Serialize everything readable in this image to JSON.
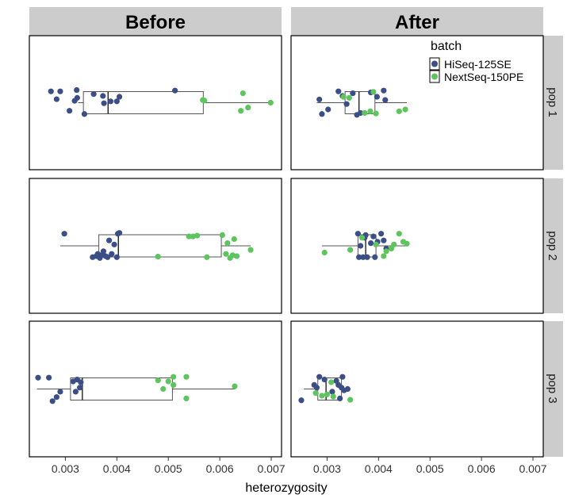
{
  "chart_data": {
    "type": "scatter",
    "xlabel": "heterozygosity",
    "xlim": [
      0.0023,
      0.0072
    ],
    "xticks": [
      "0.003",
      "0.004",
      "0.005",
      "0.006",
      "0.007"
    ],
    "xtick_values": [
      0.003,
      0.004,
      0.005,
      0.006,
      0.007
    ],
    "facet_columns": [
      "Before",
      "After"
    ],
    "facet_rows": [
      "pop 1",
      "pop 2",
      "pop 3"
    ],
    "legend": {
      "title": "batch",
      "entries": [
        {
          "label": "HiSeq-125SE",
          "color": "#3b4f86"
        },
        {
          "label": "NextSeq-150PE",
          "color": "#5ec45e"
        }
      ]
    },
    "colors": {
      "strip": "#cccccc",
      "box": "#555555",
      "panel_border": "#000000"
    },
    "panels": [
      {
        "column": "Before",
        "row": "pop 1",
        "box": {
          "whisker_low": 0.00325,
          "q1": 0.00335,
          "median": 0.00383,
          "q3": 0.00568,
          "whisker_high": 0.007
        },
        "points": [
          {
            "x": 0.00272,
            "y": 0.42,
            "batch": "HiSeq-125SE"
          },
          {
            "x": 0.0029,
            "y": 0.42,
            "batch": "HiSeq-125SE"
          },
          {
            "x": 0.00283,
            "y": 0.13,
            "batch": "HiSeq-125SE"
          },
          {
            "x": 0.00318,
            "y": 0.07,
            "batch": "HiSeq-125SE"
          },
          {
            "x": 0.00308,
            "y": -0.3,
            "batch": "HiSeq-125SE"
          },
          {
            "x": 0.00337,
            "y": -0.42,
            "batch": "HiSeq-125SE"
          },
          {
            "x": 0.00323,
            "y": 0.18,
            "batch": "HiSeq-125SE"
          },
          {
            "x": 0.00355,
            "y": 0.32,
            "batch": "HiSeq-125SE"
          },
          {
            "x": 0.00373,
            "y": 0.25,
            "batch": "HiSeq-125SE"
          },
          {
            "x": 0.00388,
            "y": 0.05,
            "batch": "HiSeq-125SE"
          },
          {
            "x": 0.004,
            "y": 0.05,
            "batch": "HiSeq-125SE"
          },
          {
            "x": 0.00375,
            "y": -0.02,
            "batch": "HiSeq-125SE"
          },
          {
            "x": 0.00405,
            "y": 0.22,
            "batch": "HiSeq-125SE"
          },
          {
            "x": 0.00513,
            "y": 0.45,
            "batch": "HiSeq-125SE"
          },
          {
            "x": 0.00322,
            "y": 0.47,
            "batch": "HiSeq-125SE"
          },
          {
            "x": 0.00567,
            "y": 0.1,
            "batch": "NextSeq-150PE"
          },
          {
            "x": 0.0057,
            "y": 0.08,
            "batch": "NextSeq-150PE"
          },
          {
            "x": 0.00645,
            "y": 0.35,
            "batch": "NextSeq-150PE"
          },
          {
            "x": 0.00641,
            "y": -0.3,
            "batch": "NextSeq-150PE"
          },
          {
            "x": 0.00655,
            "y": -0.18,
            "batch": "NextSeq-150PE"
          },
          {
            "x": 0.00699,
            "y": 0.0,
            "batch": "NextSeq-150PE"
          }
        ]
      },
      {
        "column": "After",
        "row": "pop 1",
        "box": {
          "whisker_low": 0.0028,
          "q1": 0.00335,
          "median": 0.00362,
          "q3": 0.00393,
          "whisker_high": 0.00455
        },
        "points": [
          {
            "x": 0.00285,
            "y": 0.12,
            "batch": "HiSeq-125SE"
          },
          {
            "x": 0.0029,
            "y": -0.42,
            "batch": "HiSeq-125SE"
          },
          {
            "x": 0.00302,
            "y": -0.25,
            "batch": "HiSeq-125SE"
          },
          {
            "x": 0.00322,
            "y": 0.42,
            "batch": "HiSeq-125SE"
          },
          {
            "x": 0.0033,
            "y": 0.25,
            "batch": "HiSeq-125SE"
          },
          {
            "x": 0.00338,
            "y": -0.05,
            "batch": "HiSeq-125SE"
          },
          {
            "x": 0.0035,
            "y": 0.35,
            "batch": "HiSeq-125SE"
          },
          {
            "x": 0.00358,
            "y": -0.45,
            "batch": "HiSeq-125SE"
          },
          {
            "x": 0.00365,
            "y": -0.38,
            "batch": "HiSeq-125SE"
          },
          {
            "x": 0.00385,
            "y": 0.38,
            "batch": "HiSeq-125SE"
          },
          {
            "x": 0.00397,
            "y": 0.22,
            "batch": "HiSeq-125SE"
          },
          {
            "x": 0.0041,
            "y": 0.45,
            "batch": "HiSeq-125SE"
          },
          {
            "x": 0.00413,
            "y": 0.1,
            "batch": "HiSeq-125SE"
          },
          {
            "x": 0.00332,
            "y": 0.22,
            "batch": "NextSeq-150PE"
          },
          {
            "x": 0.00343,
            "y": 0.18,
            "batch": "NextSeq-150PE"
          },
          {
            "x": 0.00373,
            "y": -0.38,
            "batch": "NextSeq-150PE"
          },
          {
            "x": 0.00384,
            "y": -0.32,
            "batch": "NextSeq-150PE"
          },
          {
            "x": 0.0039,
            "y": 0.4,
            "batch": "NextSeq-150PE"
          },
          {
            "x": 0.00395,
            "y": -0.4,
            "batch": "NextSeq-150PE"
          },
          {
            "x": 0.0044,
            "y": -0.32,
            "batch": "NextSeq-150PE"
          },
          {
            "x": 0.00452,
            "y": -0.25,
            "batch": "NextSeq-150PE"
          }
        ]
      },
      {
        "column": "Before",
        "row": "pop 2",
        "box": {
          "whisker_low": 0.0029,
          "q1": 0.00365,
          "median": 0.00403,
          "q3": 0.00603,
          "whisker_high": 0.0066
        },
        "points": [
          {
            "x": 0.00298,
            "y": 0.45,
            "batch": "HiSeq-125SE"
          },
          {
            "x": 0.00353,
            "y": -0.42,
            "batch": "HiSeq-125SE"
          },
          {
            "x": 0.0036,
            "y": -0.38,
            "batch": "HiSeq-125SE"
          },
          {
            "x": 0.00363,
            "y": -0.3,
            "batch": "HiSeq-125SE"
          },
          {
            "x": 0.00367,
            "y": -0.45,
            "batch": "HiSeq-125SE"
          },
          {
            "x": 0.0037,
            "y": -0.35,
            "batch": "HiSeq-125SE"
          },
          {
            "x": 0.00374,
            "y": -0.2,
            "batch": "HiSeq-125SE"
          },
          {
            "x": 0.00378,
            "y": -0.38,
            "batch": "HiSeq-125SE"
          },
          {
            "x": 0.00382,
            "y": -0.42,
            "batch": "HiSeq-125SE"
          },
          {
            "x": 0.00385,
            "y": 0.2,
            "batch": "HiSeq-125SE"
          },
          {
            "x": 0.0039,
            "y": -0.3,
            "batch": "HiSeq-125SE"
          },
          {
            "x": 0.00395,
            "y": 0.05,
            "batch": "HiSeq-125SE"
          },
          {
            "x": 0.004,
            "y": -0.42,
            "batch": "HiSeq-125SE"
          },
          {
            "x": 0.00402,
            "y": 0.45,
            "batch": "HiSeq-125SE"
          },
          {
            "x": 0.00405,
            "y": 0.48,
            "batch": "HiSeq-125SE"
          },
          {
            "x": 0.0048,
            "y": -0.4,
            "batch": "NextSeq-150PE"
          },
          {
            "x": 0.0054,
            "y": 0.35,
            "batch": "NextSeq-150PE"
          },
          {
            "x": 0.00548,
            "y": 0.35,
            "batch": "NextSeq-150PE"
          },
          {
            "x": 0.00556,
            "y": 0.38,
            "batch": "NextSeq-150PE"
          },
          {
            "x": 0.00575,
            "y": -0.42,
            "batch": "NextSeq-150PE"
          },
          {
            "x": 0.00605,
            "y": 0.4,
            "batch": "NextSeq-150PE"
          },
          {
            "x": 0.00612,
            "y": -0.3,
            "batch": "NextSeq-150PE"
          },
          {
            "x": 0.00615,
            "y": 0.1,
            "batch": "NextSeq-150PE"
          },
          {
            "x": 0.0062,
            "y": -0.45,
            "batch": "NextSeq-150PE"
          },
          {
            "x": 0.00625,
            "y": -0.35,
            "batch": "NextSeq-150PE"
          },
          {
            "x": 0.00628,
            "y": 0.25,
            "batch": "NextSeq-150PE"
          },
          {
            "x": 0.00633,
            "y": -0.38,
            "batch": "NextSeq-150PE"
          },
          {
            "x": 0.0066,
            "y": -0.15,
            "batch": "NextSeq-150PE"
          }
        ]
      },
      {
        "column": "After",
        "row": "pop 2",
        "box": {
          "whisker_low": 0.0029,
          "q1": 0.0036,
          "median": 0.00375,
          "q3": 0.00395,
          "whisker_high": 0.00455
        },
        "points": [
          {
            "x": 0.0036,
            "y": 0.45,
            "batch": "HiSeq-125SE"
          },
          {
            "x": 0.00362,
            "y": -0.42,
            "batch": "HiSeq-125SE"
          },
          {
            "x": 0.00365,
            "y": 0.0,
            "batch": "HiSeq-125SE"
          },
          {
            "x": 0.0037,
            "y": -0.42,
            "batch": "HiSeq-125SE"
          },
          {
            "x": 0.00373,
            "y": 0.3,
            "batch": "HiSeq-125SE"
          },
          {
            "x": 0.00378,
            "y": -0.42,
            "batch": "HiSeq-125SE"
          },
          {
            "x": 0.00385,
            "y": 0.1,
            "batch": "HiSeq-125SE"
          },
          {
            "x": 0.0039,
            "y": 0.35,
            "batch": "HiSeq-125SE"
          },
          {
            "x": 0.00393,
            "y": -0.42,
            "batch": "HiSeq-125SE"
          },
          {
            "x": 0.00398,
            "y": 0.15,
            "batch": "HiSeq-125SE"
          },
          {
            "x": 0.00405,
            "y": 0.45,
            "batch": "HiSeq-125SE"
          },
          {
            "x": 0.0041,
            "y": 0.2,
            "batch": "HiSeq-125SE"
          },
          {
            "x": 0.00415,
            "y": -0.1,
            "batch": "HiSeq-125SE"
          },
          {
            "x": 0.00375,
            "y": 0.4,
            "batch": "HiSeq-125SE"
          },
          {
            "x": 0.00295,
            "y": -0.25,
            "batch": "NextSeq-150PE"
          },
          {
            "x": 0.00345,
            "y": -0.15,
            "batch": "NextSeq-150PE"
          },
          {
            "x": 0.00368,
            "y": 0.3,
            "batch": "NextSeq-150PE"
          },
          {
            "x": 0.00395,
            "y": 0.05,
            "batch": "NextSeq-150PE"
          },
          {
            "x": 0.0041,
            "y": -0.38,
            "batch": "NextSeq-150PE"
          },
          {
            "x": 0.00415,
            "y": -0.2,
            "batch": "NextSeq-150PE"
          },
          {
            "x": 0.00425,
            "y": -0.1,
            "batch": "NextSeq-150PE"
          },
          {
            "x": 0.0043,
            "y": 0.05,
            "batch": "NextSeq-150PE"
          },
          {
            "x": 0.0044,
            "y": 0.45,
            "batch": "NextSeq-150PE"
          },
          {
            "x": 0.00448,
            "y": 0.15,
            "batch": "NextSeq-150PE"
          },
          {
            "x": 0.00455,
            "y": 0.08,
            "batch": "NextSeq-150PE"
          }
        ]
      },
      {
        "column": "Before",
        "row": "pop 3",
        "box": {
          "whisker_low": 0.00245,
          "q1": 0.0031,
          "median": 0.00333,
          "q3": 0.00508,
          "whisker_high": 0.0063
        },
        "points": [
          {
            "x": 0.00247,
            "y": 0.42,
            "batch": "HiSeq-125SE"
          },
          {
            "x": 0.00268,
            "y": 0.42,
            "batch": "HiSeq-125SE"
          },
          {
            "x": 0.00275,
            "y": -0.45,
            "batch": "HiSeq-125SE"
          },
          {
            "x": 0.0029,
            "y": -0.1,
            "batch": "HiSeq-125SE"
          },
          {
            "x": 0.00283,
            "y": -0.3,
            "batch": "HiSeq-125SE"
          },
          {
            "x": 0.00315,
            "y": 0.28,
            "batch": "HiSeq-125SE"
          },
          {
            "x": 0.0032,
            "y": -0.1,
            "batch": "HiSeq-125SE"
          },
          {
            "x": 0.00323,
            "y": 0.35,
            "batch": "HiSeq-125SE"
          },
          {
            "x": 0.00328,
            "y": 0.05,
            "batch": "HiSeq-125SE"
          },
          {
            "x": 0.0033,
            "y": 0.25,
            "batch": "HiSeq-125SE"
          },
          {
            "x": 0.0048,
            "y": 0.32,
            "batch": "NextSeq-150PE"
          },
          {
            "x": 0.0049,
            "y": 0.0,
            "batch": "NextSeq-150PE"
          },
          {
            "x": 0.005,
            "y": 0.28,
            "batch": "NextSeq-150PE"
          },
          {
            "x": 0.0051,
            "y": 0.45,
            "batch": "NextSeq-150PE"
          },
          {
            "x": 0.0051,
            "y": 0.15,
            "batch": "NextSeq-150PE"
          },
          {
            "x": 0.00535,
            "y": -0.35,
            "batch": "NextSeq-150PE"
          },
          {
            "x": 0.00535,
            "y": 0.45,
            "batch": "NextSeq-150PE"
          },
          {
            "x": 0.00629,
            "y": 0.1,
            "batch": "NextSeq-150PE"
          }
        ]
      },
      {
        "column": "After",
        "row": "pop 3",
        "box": {
          "whisker_low": 0.00255,
          "q1": 0.00282,
          "median": 0.00298,
          "q3": 0.00328,
          "whisker_high": 0.00345
        },
        "points": [
          {
            "x": 0.0025,
            "y": -0.42,
            "batch": "HiSeq-125SE"
          },
          {
            "x": 0.00275,
            "y": 0.15,
            "batch": "HiSeq-125SE"
          },
          {
            "x": 0.0028,
            "y": 0.05,
            "batch": "HiSeq-125SE"
          },
          {
            "x": 0.00285,
            "y": 0.45,
            "batch": "HiSeq-125SE"
          },
          {
            "x": 0.00295,
            "y": 0.35,
            "batch": "HiSeq-125SE"
          },
          {
            "x": 0.0031,
            "y": -0.1,
            "batch": "HiSeq-125SE"
          },
          {
            "x": 0.00318,
            "y": 0.3,
            "batch": "HiSeq-125SE"
          },
          {
            "x": 0.00322,
            "y": 0.15,
            "batch": "HiSeq-125SE"
          },
          {
            "x": 0.00325,
            "y": -0.35,
            "batch": "HiSeq-125SE"
          },
          {
            "x": 0.00328,
            "y": 0.05,
            "batch": "HiSeq-125SE"
          },
          {
            "x": 0.00333,
            "y": -0.05,
            "batch": "HiSeq-125SE"
          },
          {
            "x": 0.0034,
            "y": 0.0,
            "batch": "HiSeq-125SE"
          },
          {
            "x": 0.0033,
            "y": 0.45,
            "batch": "HiSeq-125SE"
          },
          {
            "x": 0.00278,
            "y": -0.15,
            "batch": "NextSeq-150PE"
          },
          {
            "x": 0.0029,
            "y": -0.25,
            "batch": "NextSeq-150PE"
          },
          {
            "x": 0.003,
            "y": -0.2,
            "batch": "NextSeq-150PE"
          },
          {
            "x": 0.00308,
            "y": 0.25,
            "batch": "NextSeq-150PE"
          },
          {
            "x": 0.00312,
            "y": -0.28,
            "batch": "NextSeq-150PE"
          },
          {
            "x": 0.00345,
            "y": -0.4,
            "batch": "NextSeq-150PE"
          }
        ]
      }
    ]
  }
}
